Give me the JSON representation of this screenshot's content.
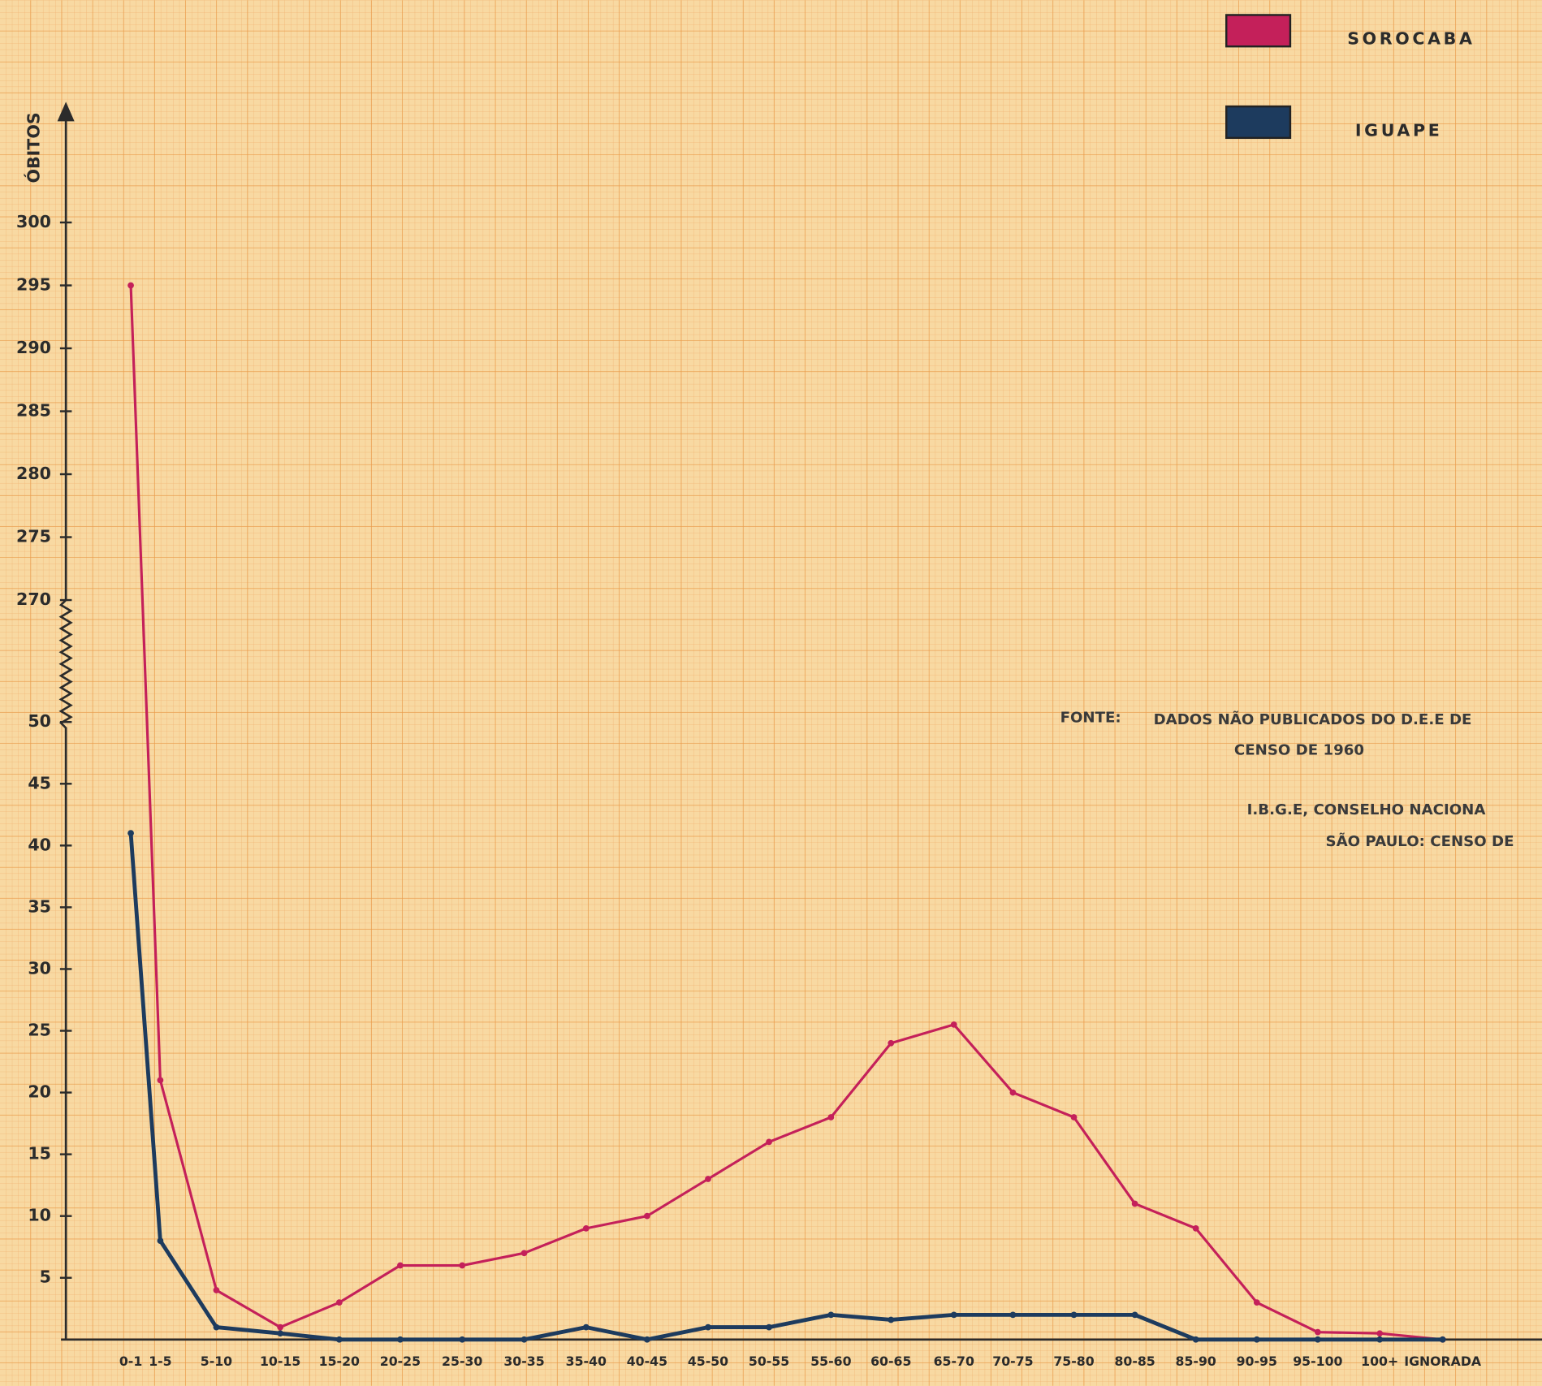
{
  "chart_data": {
    "type": "line",
    "y_label": "ÓBITOS",
    "categories": [
      "0-1",
      "1-5",
      "5-10",
      "10-15",
      "15-20",
      "20-25",
      "25-30",
      "30-35",
      "35-40",
      "40-45",
      "45-50",
      "50-55",
      "55-60",
      "60-65",
      "65-70",
      "70-75",
      "75-80",
      "80-85",
      "85-90",
      "90-95",
      "95-100",
      "100+",
      "IGNORADA"
    ],
    "series": [
      {
        "name": "SOROCABA",
        "color": "#c4205a",
        "values": [
          295,
          21,
          4,
          1,
          3,
          6,
          6,
          7,
          9,
          10,
          13,
          16,
          18,
          24,
          25.5,
          20,
          18,
          11,
          9,
          3,
          0.6,
          0.5,
          0
        ]
      },
      {
        "name": "IGUAPE",
        "color": "#1d3b5e",
        "values": [
          41,
          8,
          1,
          0.5,
          0,
          0,
          0,
          0,
          1,
          0,
          1,
          1,
          2,
          1.6,
          2,
          2,
          2,
          2,
          0,
          0,
          0,
          0,
          0
        ]
      }
    ],
    "ylim": [
      0,
      300
    ],
    "ybreak": [
      50,
      270
    ],
    "yticks": [
      5,
      10,
      15,
      20,
      25,
      30,
      35,
      40,
      45,
      50,
      270,
      275,
      280,
      285,
      290,
      295,
      300
    ],
    "annotations": [
      "FONTE:",
      "DADOS NÃO PUBLICADOS DO D.E.E DE",
      "CENSO DE 1960",
      "I.B.G.E, CONSELHO NACIONA",
      "SÃO PAULO: CENSO DE"
    ]
  }
}
